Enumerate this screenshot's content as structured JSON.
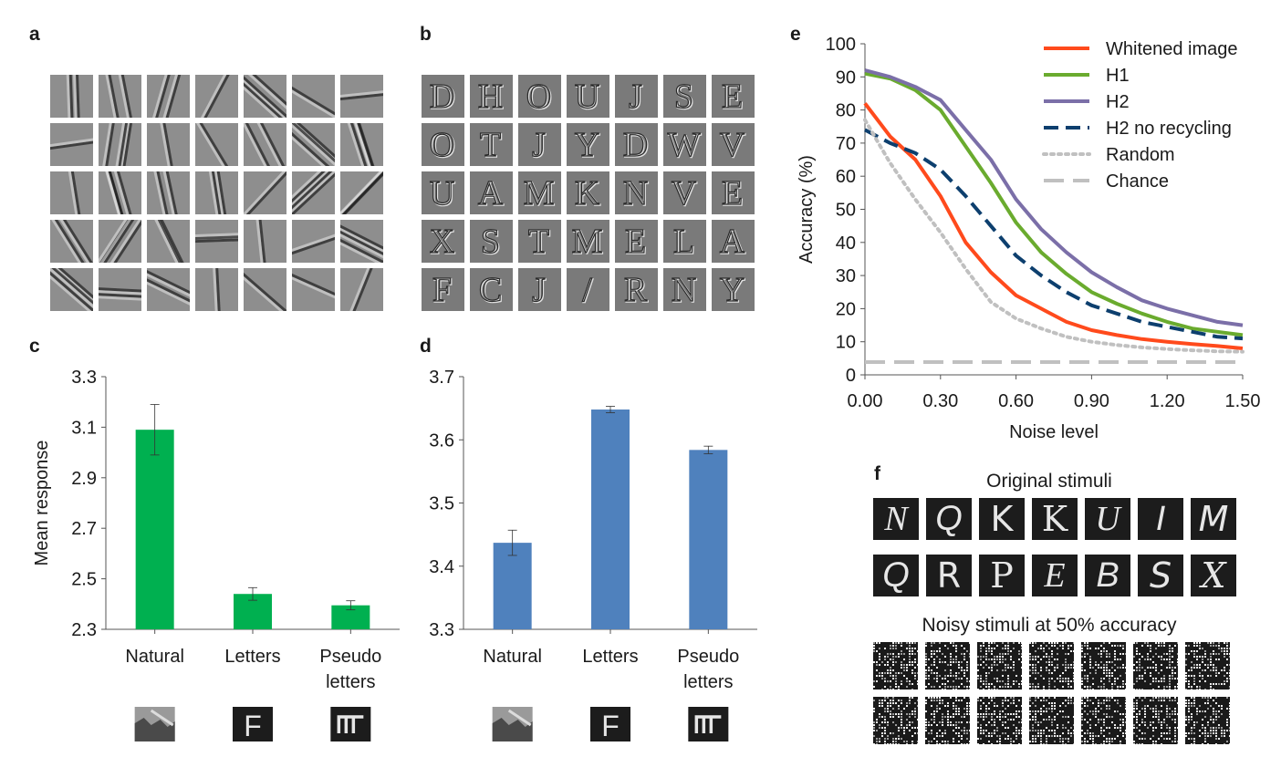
{
  "panels": {
    "a": "a",
    "b": "b",
    "c": "c",
    "d": "d",
    "e": "e",
    "f": "f"
  },
  "panel_b_letters": [
    "D",
    "H",
    "O",
    "U",
    "J",
    "S",
    "E",
    "O",
    "T",
    "J",
    "Y",
    "D",
    "W",
    "V",
    "U",
    "A",
    "M",
    "K",
    "N",
    "V",
    "E",
    "X",
    "S",
    "T",
    "M",
    "E",
    "L",
    "A",
    "F",
    "C",
    "J",
    "/",
    "R",
    "N",
    "Y"
  ],
  "chart_data": [
    {
      "id": "c",
      "type": "bar",
      "categories": [
        "Natural",
        "Letters",
        "Pseudo letters"
      ],
      "category_lines": [
        [
          "Natural"
        ],
        [
          "Letters"
        ],
        [
          "Pseudo",
          "letters"
        ]
      ],
      "values": [
        3.09,
        2.44,
        2.395
      ],
      "errors": [
        0.1,
        0.025,
        0.018
      ],
      "ylabel": "Mean response",
      "ylim": [
        2.3,
        3.3
      ],
      "yticks": [
        "3.3",
        "3.1",
        "2.9",
        "2.7",
        "2.5",
        "2.3"
      ],
      "ytick_values": [
        3.3,
        3.1,
        2.9,
        2.7,
        2.5,
        2.3
      ],
      "color": "#00b050"
    },
    {
      "id": "d",
      "type": "bar",
      "categories": [
        "Natural",
        "Letters",
        "Pseudo letters"
      ],
      "category_lines": [
        [
          "Natural"
        ],
        [
          "Letters"
        ],
        [
          "Pseudo",
          "letters"
        ]
      ],
      "values": [
        3.437,
        3.648,
        3.584
      ],
      "errors": [
        0.02,
        0.005,
        0.006
      ],
      "ylabel": "",
      "ylim": [
        3.3,
        3.7
      ],
      "yticks": [
        "3.7",
        "3.6",
        "3.5",
        "3.4",
        "3.3"
      ],
      "ytick_values": [
        3.7,
        3.6,
        3.5,
        3.4,
        3.3
      ],
      "color": "#4f81bd"
    },
    {
      "id": "e",
      "type": "line",
      "xlabel": "Noise level",
      "ylabel": "Accuracy (%)",
      "xlim": [
        0,
        1.5
      ],
      "ylim": [
        0,
        100
      ],
      "xticks": [
        "0.00",
        "0.30",
        "0.60",
        "0.90",
        "1.20",
        "1.50"
      ],
      "xtick_values": [
        0,
        0.3,
        0.6,
        0.9,
        1.2,
        1.5
      ],
      "yticks": [
        "100",
        "90",
        "80",
        "70",
        "60",
        "50",
        "40",
        "30",
        "20",
        "10",
        "0"
      ],
      "ytick_values": [
        100,
        90,
        80,
        70,
        60,
        50,
        40,
        30,
        20,
        10,
        0
      ],
      "x": [
        0,
        0.1,
        0.2,
        0.3,
        0.4,
        0.5,
        0.6,
        0.7,
        0.8,
        0.9,
        1.0,
        1.1,
        1.2,
        1.3,
        1.4,
        1.5
      ],
      "legend_position": "top-right",
      "series": [
        {
          "name": "Whitened image",
          "color": "#ff4a1c",
          "dash": "solid",
          "values": [
            82,
            72,
            65,
            54,
            40,
            31,
            24,
            20,
            16,
            13.5,
            12,
            10.8,
            10,
            9.3,
            8.7,
            8
          ]
        },
        {
          "name": "H1",
          "color": "#6aab2e",
          "dash": "solid",
          "values": [
            91,
            89.5,
            86,
            80,
            69,
            58,
            46,
            37,
            30.5,
            25,
            21.5,
            18.5,
            16,
            14,
            13,
            12
          ]
        },
        {
          "name": "H2",
          "color": "#7b6fa8",
          "dash": "solid",
          "values": [
            92,
            90,
            87,
            83,
            74,
            65,
            53,
            44,
            37,
            31,
            26.5,
            22.5,
            20,
            18,
            16,
            15
          ]
        },
        {
          "name": "H2 no recycling",
          "color": "#0d3f6e",
          "dash": "dash",
          "values": [
            74,
            70,
            67,
            62,
            54,
            45,
            36,
            30,
            25,
            21,
            18.5,
            16,
            14.5,
            13,
            11.5,
            11
          ]
        },
        {
          "name": "Random",
          "color": "#c0c0c0",
          "dash": "dot",
          "values": [
            77,
            64,
            53,
            43,
            32,
            22,
            17,
            14,
            11.5,
            10,
            9,
            8.3,
            7.8,
            7.4,
            7.1,
            7
          ]
        },
        {
          "name": "Chance",
          "color": "#c0c0c0",
          "dash": "longdash",
          "values": [
            3.85,
            3.85,
            3.85,
            3.85,
            3.85,
            3.85,
            3.85,
            3.85,
            3.85,
            3.85,
            3.85,
            3.85,
            3.85,
            3.85,
            3.85,
            3.85
          ]
        }
      ]
    }
  ],
  "panel_f": {
    "original_title": "Original stimuli",
    "row1": [
      "N",
      "Q",
      "K",
      "K",
      "U",
      "I",
      "M"
    ],
    "row2": [
      "Q",
      "R",
      "P",
      "E",
      "B",
      "S",
      "X"
    ],
    "noisy_title": "Noisy stimuli at 50% accuracy"
  },
  "icons": {
    "natural": "natural-image-icon",
    "letter": "F",
    "pseudo": "pseudo-letter-icon"
  }
}
